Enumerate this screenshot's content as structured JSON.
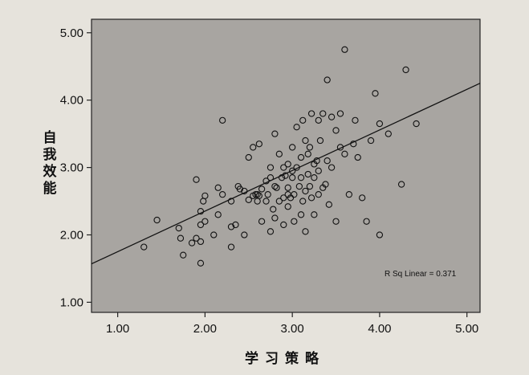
{
  "chart_data": {
    "type": "scatter",
    "title": "",
    "xlabel": "学习策略",
    "ylabel": "自我效能",
    "xlim": [
      0.7,
      5.15
    ],
    "ylim": [
      0.85,
      5.2
    ],
    "xticks": [
      "1.00",
      "2.00",
      "3.00",
      "4.00",
      "5.00"
    ],
    "yticks": [
      "1.00",
      "2.00",
      "3.00",
      "4.00",
      "5.00"
    ],
    "grid": false,
    "annotation": "R Sq Linear = 0.371",
    "fit_line": {
      "x": [
        0.7,
        5.15
      ],
      "y": [
        1.57,
        4.25
      ]
    },
    "points": [
      [
        1.3,
        1.82
      ],
      [
        1.45,
        2.22
      ],
      [
        1.7,
        2.1
      ],
      [
        1.72,
        1.95
      ],
      [
        1.75,
        1.7
      ],
      [
        1.85,
        1.88
      ],
      [
        1.9,
        2.82
      ],
      [
        1.9,
        1.95
      ],
      [
        1.95,
        1.58
      ],
      [
        1.95,
        2.15
      ],
      [
        1.95,
        2.35
      ],
      [
        1.95,
        1.9
      ],
      [
        1.98,
        2.5
      ],
      [
        2.0,
        2.58
      ],
      [
        2.0,
        2.2
      ],
      [
        2.1,
        2.0
      ],
      [
        2.15,
        2.7
      ],
      [
        2.15,
        2.3
      ],
      [
        2.2,
        3.7
      ],
      [
        2.2,
        2.6
      ],
      [
        2.3,
        1.82
      ],
      [
        2.3,
        2.5
      ],
      [
        2.3,
        2.12
      ],
      [
        2.35,
        2.15
      ],
      [
        2.38,
        2.72
      ],
      [
        2.4,
        2.68
      ],
      [
        2.45,
        2.65
      ],
      [
        2.45,
        2.0
      ],
      [
        2.5,
        3.15
      ],
      [
        2.5,
        2.52
      ],
      [
        2.55,
        3.3
      ],
      [
        2.55,
        2.58
      ],
      [
        2.58,
        2.6
      ],
      [
        2.6,
        2.5
      ],
      [
        2.6,
        2.6
      ],
      [
        2.62,
        2.58
      ],
      [
        2.62,
        3.35
      ],
      [
        2.65,
        2.68
      ],
      [
        2.65,
        2.2
      ],
      [
        2.7,
        2.8
      ],
      [
        2.7,
        2.5
      ],
      [
        2.72,
        2.6
      ],
      [
        2.75,
        2.85
      ],
      [
        2.75,
        2.05
      ],
      [
        2.75,
        3.0
      ],
      [
        2.78,
        2.38
      ],
      [
        2.8,
        2.72
      ],
      [
        2.8,
        3.5
      ],
      [
        2.8,
        2.25
      ],
      [
        2.82,
        2.7
      ],
      [
        2.85,
        3.2
      ],
      [
        2.85,
        2.5
      ],
      [
        2.88,
        2.85
      ],
      [
        2.9,
        2.55
      ],
      [
        2.9,
        3.0
      ],
      [
        2.9,
        2.15
      ],
      [
        2.92,
        2.88
      ],
      [
        2.95,
        2.6
      ],
      [
        2.95,
        2.7
      ],
      [
        2.95,
        2.42
      ],
      [
        2.95,
        3.05
      ],
      [
        2.98,
        2.55
      ],
      [
        3.0,
        2.85
      ],
      [
        3.0,
        3.3
      ],
      [
        3.0,
        2.95
      ],
      [
        3.02,
        2.6
      ],
      [
        3.02,
        2.2
      ],
      [
        3.05,
        3.0
      ],
      [
        3.05,
        3.6
      ],
      [
        3.08,
        2.72
      ],
      [
        3.1,
        2.85
      ],
      [
        3.1,
        3.15
      ],
      [
        3.1,
        2.3
      ],
      [
        3.12,
        2.5
      ],
      [
        3.12,
        3.7
      ],
      [
        3.15,
        2.05
      ],
      [
        3.15,
        3.4
      ],
      [
        3.15,
        2.65
      ],
      [
        3.18,
        3.2
      ],
      [
        3.18,
        2.9
      ],
      [
        3.2,
        2.72
      ],
      [
        3.2,
        3.3
      ],
      [
        3.22,
        3.8
      ],
      [
        3.22,
        2.55
      ],
      [
        3.25,
        2.85
      ],
      [
        3.25,
        3.05
      ],
      [
        3.25,
        2.3
      ],
      [
        3.28,
        3.1
      ],
      [
        3.3,
        2.6
      ],
      [
        3.3,
        3.7
      ],
      [
        3.3,
        2.95
      ],
      [
        3.32,
        3.4
      ],
      [
        3.35,
        2.7
      ],
      [
        3.35,
        3.8
      ],
      [
        3.38,
        2.75
      ],
      [
        3.4,
        3.1
      ],
      [
        3.4,
        4.3
      ],
      [
        3.42,
        2.45
      ],
      [
        3.45,
        3.75
      ],
      [
        3.45,
        3.0
      ],
      [
        3.5,
        2.2
      ],
      [
        3.5,
        3.55
      ],
      [
        3.55,
        3.3
      ],
      [
        3.55,
        3.8
      ],
      [
        3.6,
        3.2
      ],
      [
        3.6,
        4.75
      ],
      [
        3.65,
        2.6
      ],
      [
        3.7,
        3.35
      ],
      [
        3.72,
        3.7
      ],
      [
        3.75,
        3.15
      ],
      [
        3.8,
        2.55
      ],
      [
        3.85,
        2.2
      ],
      [
        3.9,
        3.4
      ],
      [
        3.95,
        4.1
      ],
      [
        4.0,
        3.65
      ],
      [
        4.1,
        3.5
      ],
      [
        4.25,
        2.75
      ],
      [
        4.3,
        4.45
      ],
      [
        4.42,
        3.65
      ],
      [
        4.0,
        2.0
      ]
    ]
  }
}
